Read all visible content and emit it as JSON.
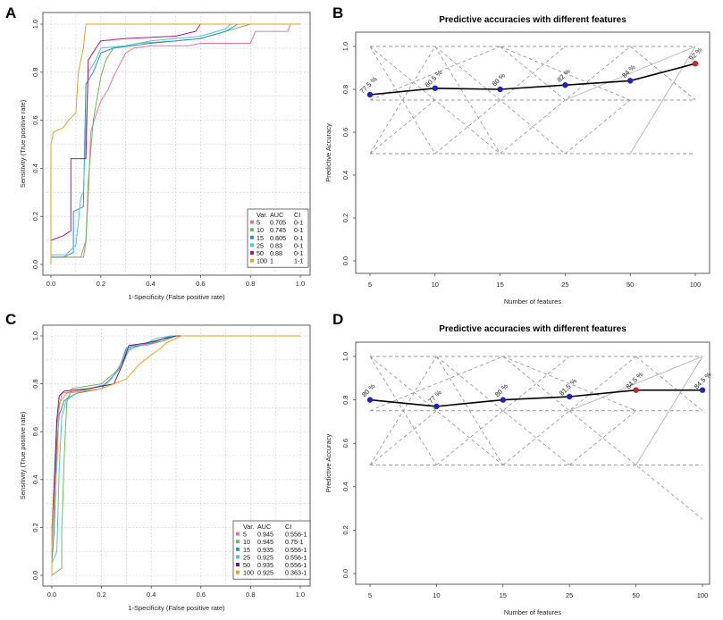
{
  "panels": {
    "A": {
      "letter": "A"
    },
    "B": {
      "letter": "B"
    },
    "C": {
      "letter": "C"
    },
    "D": {
      "letter": "D"
    }
  },
  "chart_data": [
    {
      "id": "A",
      "type": "line",
      "subtype": "roc",
      "title": "",
      "xlabel": "1-Specificity (False positive rate)",
      "ylabel": "Sensitivity (True positive rate)",
      "xlim": [
        0,
        1
      ],
      "ylim": [
        0,
        1
      ],
      "xticks": [
        "0.0",
        "0.2",
        "0.4",
        "0.6",
        "0.8",
        "1.0"
      ],
      "yticks": [
        "0.0",
        "0.2",
        "0.4",
        "0.6",
        "0.8",
        "1.0"
      ],
      "grid": true,
      "legend_position": "bottom-right",
      "legend_header": [
        "Var.",
        "AUC",
        "CI"
      ],
      "series": [
        {
          "name": "5",
          "auc": "0.705",
          "ci": "0-1",
          "color": "#e8739a",
          "points": [
            [
              0,
              0
            ],
            [
              0,
              0.03
            ],
            [
              0.13,
              0.03
            ],
            [
              0.14,
              0.09
            ],
            [
              0.15,
              0.29
            ],
            [
              0.16,
              0.55
            ],
            [
              0.18,
              0.62
            ],
            [
              0.2,
              0.68
            ],
            [
              0.23,
              0.73
            ],
            [
              0.25,
              0.78
            ],
            [
              0.27,
              0.82
            ],
            [
              0.3,
              0.88
            ],
            [
              0.33,
              0.9
            ],
            [
              0.4,
              0.91
            ],
            [
              0.55,
              0.91
            ],
            [
              0.6,
              0.92
            ],
            [
              0.8,
              0.92
            ],
            [
              0.82,
              0.97
            ],
            [
              0.95,
              0.97
            ],
            [
              0.96,
              1
            ],
            [
              1,
              1
            ]
          ]
        },
        {
          "name": "10",
          "auc": "0.745",
          "ci": "0-1",
          "color": "#70b85c",
          "points": [
            [
              0,
              0
            ],
            [
              0,
              0.03
            ],
            [
              0.12,
              0.03
            ],
            [
              0.14,
              0.1
            ],
            [
              0.15,
              0.35
            ],
            [
              0.17,
              0.6
            ],
            [
              0.2,
              0.78
            ],
            [
              0.22,
              0.85
            ],
            [
              0.25,
              0.9
            ],
            [
              0.35,
              0.92
            ],
            [
              0.5,
              0.93
            ],
            [
              0.6,
              0.94
            ],
            [
              0.7,
              0.97
            ],
            [
              0.8,
              1
            ],
            [
              1,
              1
            ]
          ]
        },
        {
          "name": "15",
          "auc": "0.805",
          "ci": "0-1",
          "color": "#2f8fd4",
          "points": [
            [
              0,
              0
            ],
            [
              0,
              0.03
            ],
            [
              0.05,
              0.03
            ],
            [
              0.09,
              0.05
            ],
            [
              0.09,
              0.22
            ],
            [
              0.13,
              0.24
            ],
            [
              0.14,
              0.75
            ],
            [
              0.17,
              0.8
            ],
            [
              0.2,
              0.88
            ],
            [
              0.25,
              0.9
            ],
            [
              0.4,
              0.92
            ],
            [
              0.6,
              0.94
            ],
            [
              0.7,
              0.97
            ],
            [
              0.75,
              1
            ],
            [
              1,
              1
            ]
          ]
        },
        {
          "name": "25",
          "auc": "0.83",
          "ci": "0-1",
          "color": "#4ac8c8",
          "points": [
            [
              0,
              0
            ],
            [
              0,
              0.04
            ],
            [
              0.06,
              0.04
            ],
            [
              0.1,
              0.08
            ],
            [
              0.12,
              0.28
            ],
            [
              0.13,
              0.3
            ],
            [
              0.15,
              0.8
            ],
            [
              0.18,
              0.85
            ],
            [
              0.2,
              0.9
            ],
            [
              0.3,
              0.91
            ],
            [
              0.4,
              0.93
            ],
            [
              0.6,
              0.95
            ],
            [
              0.7,
              0.98
            ],
            [
              0.72,
              1
            ],
            [
              1,
              1
            ]
          ]
        },
        {
          "name": "50",
          "auc": "0.88",
          "ci": "0-1",
          "color": "#b0148c",
          "points": [
            [
              0,
              0
            ],
            [
              0,
              0.1
            ],
            [
              0.05,
              0.12
            ],
            [
              0.08,
              0.14
            ],
            [
              0.08,
              0.44
            ],
            [
              0.14,
              0.44
            ],
            [
              0.15,
              0.85
            ],
            [
              0.18,
              0.9
            ],
            [
              0.2,
              0.93
            ],
            [
              0.3,
              0.94
            ],
            [
              0.5,
              0.95
            ],
            [
              0.58,
              0.97
            ],
            [
              0.6,
              1
            ],
            [
              1,
              1
            ]
          ]
        },
        {
          "name": "100",
          "auc": "1",
          "ci": "1-1",
          "color": "#e8a21c",
          "points": [
            [
              0,
              0
            ],
            [
              0,
              0.5
            ],
            [
              0.01,
              0.55
            ],
            [
              0.05,
              0.57
            ],
            [
              0.07,
              0.6
            ],
            [
              0.1,
              0.63
            ],
            [
              0.11,
              0.8
            ],
            [
              0.13,
              0.9
            ],
            [
              0.14,
              1
            ],
            [
              1,
              1
            ]
          ]
        }
      ]
    },
    {
      "id": "B",
      "type": "line",
      "title": "Predictive accuracies with different features",
      "xlabel": "Number of features",
      "ylabel": "Predictive Accuracy",
      "categories": [
        "5",
        "10",
        "15",
        "25",
        "50",
        "100"
      ],
      "ylim": [
        0,
        1
      ],
      "yticks": [
        "0.0",
        "0.2",
        "0.4",
        "0.6",
        "0.8",
        "1.0"
      ],
      "values": [
        0.775,
        0.805,
        0.8,
        0.82,
        0.84,
        0.92
      ],
      "data_labels": [
        "77.5 %",
        "80.5 %",
        "80 %",
        "82 %",
        "84 %",
        "92 %"
      ],
      "highlight_index": 5,
      "point_color": "#1f1fd8",
      "highlight_color": "#e02020"
    },
    {
      "id": "C",
      "type": "line",
      "subtype": "roc",
      "title": "",
      "xlabel": "1-Specificity (False positive rate)",
      "ylabel": "Sensitivity (True positive rate)",
      "xlim": [
        0,
        1
      ],
      "ylim": [
        0,
        1
      ],
      "xticks": [
        "0.0",
        "0.2",
        "0.4",
        "0.6",
        "0.8",
        "1.0"
      ],
      "yticks": [
        "0.0",
        "0.2",
        "0.4",
        "0.6",
        "0.8",
        "1.0"
      ],
      "grid": true,
      "legend_position": "bottom-right",
      "legend_header": [
        "Var.",
        "AUC",
        "CI"
      ],
      "series": [
        {
          "name": "5",
          "auc": "0.945",
          "ci": "0.556-1",
          "color": "#e8739a",
          "points": [
            [
              0,
              0
            ],
            [
              0,
              0.12
            ],
            [
              0.01,
              0.3
            ],
            [
              0.02,
              0.62
            ],
            [
              0.03,
              0.7
            ],
            [
              0.04,
              0.76
            ],
            [
              0.1,
              0.77
            ],
            [
              0.2,
              0.79
            ],
            [
              0.24,
              0.82
            ],
            [
              0.27,
              0.87
            ],
            [
              0.3,
              0.92
            ],
            [
              0.32,
              0.96
            ],
            [
              0.38,
              0.96
            ],
            [
              0.45,
              0.98
            ],
            [
              0.5,
              1
            ],
            [
              1,
              1
            ]
          ]
        },
        {
          "name": "10",
          "auc": "0.945",
          "ci": "0.75-1",
          "color": "#70b85c",
          "points": [
            [
              0,
              0
            ],
            [
              0.04,
              0.03
            ],
            [
              0.04,
              0.18
            ],
            [
              0.05,
              0.5
            ],
            [
              0.06,
              0.72
            ],
            [
              0.08,
              0.78
            ],
            [
              0.2,
              0.8
            ],
            [
              0.28,
              0.87
            ],
            [
              0.31,
              0.94
            ],
            [
              0.35,
              0.96
            ],
            [
              0.45,
              0.98
            ],
            [
              0.5,
              1
            ],
            [
              1,
              1
            ]
          ]
        },
        {
          "name": "15",
          "auc": "0.935",
          "ci": "0.556-1",
          "color": "#2f8fd4",
          "points": [
            [
              0,
              0
            ],
            [
              0,
              0.05
            ],
            [
              0.01,
              0.2
            ],
            [
              0.02,
              0.55
            ],
            [
              0.03,
              0.67
            ],
            [
              0.05,
              0.73
            ],
            [
              0.1,
              0.76
            ],
            [
              0.2,
              0.78
            ],
            [
              0.27,
              0.86
            ],
            [
              0.3,
              0.95
            ],
            [
              0.4,
              0.97
            ],
            [
              0.48,
              1
            ],
            [
              1,
              1
            ]
          ]
        },
        {
          "name": "25",
          "auc": "0.925",
          "ci": "0.556-1",
          "color": "#4ac8c8",
          "points": [
            [
              0,
              0
            ],
            [
              0,
              0.05
            ],
            [
              0.02,
              0.1
            ],
            [
              0.03,
              0.45
            ],
            [
              0.04,
              0.66
            ],
            [
              0.06,
              0.74
            ],
            [
              0.12,
              0.77
            ],
            [
              0.22,
              0.8
            ],
            [
              0.28,
              0.87
            ],
            [
              0.3,
              0.94
            ],
            [
              0.36,
              0.96
            ],
            [
              0.42,
              0.99
            ],
            [
              0.48,
              1
            ],
            [
              1,
              1
            ]
          ]
        },
        {
          "name": "50",
          "auc": "0.935",
          "ci": "0.556-1",
          "color": "#6a1a7a",
          "points": [
            [
              0,
              0
            ],
            [
              0,
              0.18
            ],
            [
              0.01,
              0.4
            ],
            [
              0.02,
              0.65
            ],
            [
              0.03,
              0.75
            ],
            [
              0.05,
              0.77
            ],
            [
              0.15,
              0.78
            ],
            [
              0.25,
              0.8
            ],
            [
              0.28,
              0.87
            ],
            [
              0.31,
              0.96
            ],
            [
              0.38,
              0.97
            ],
            [
              0.5,
              1
            ],
            [
              1,
              1
            ]
          ]
        },
        {
          "name": "100",
          "auc": "0.925",
          "ci": "0.363-1",
          "color": "#e8a21c",
          "points": [
            [
              0,
              0
            ],
            [
              0,
              0.2
            ],
            [
              0.02,
              0.45
            ],
            [
              0.03,
              0.72
            ],
            [
              0.06,
              0.76
            ],
            [
              0.2,
              0.78
            ],
            [
              0.3,
              0.82
            ],
            [
              0.35,
              0.88
            ],
            [
              0.4,
              0.92
            ],
            [
              0.44,
              0.95
            ],
            [
              0.46,
              0.97
            ],
            [
              0.52,
              1
            ],
            [
              1,
              1
            ]
          ]
        }
      ]
    },
    {
      "id": "D",
      "type": "line",
      "title": "Predictive accuracies with different features",
      "xlabel": "Number of features",
      "ylabel": "Predictive Accuracy",
      "categories": [
        "5",
        "10",
        "15",
        "25",
        "50",
        "100"
      ],
      "ylim": [
        0,
        1
      ],
      "yticks": [
        "0.0",
        "0.2",
        "0.4",
        "0.6",
        "0.8",
        "1.0"
      ],
      "values": [
        0.8,
        0.77,
        0.8,
        0.815,
        0.845,
        0.845
      ],
      "data_labels": [
        "80 %",
        "77 %",
        "80 %",
        "81.5 %",
        "84.5 %",
        "84.5 %"
      ],
      "highlight_index": 4,
      "point_color": "#1f1fd8",
      "highlight_color": "#e02020"
    }
  ]
}
